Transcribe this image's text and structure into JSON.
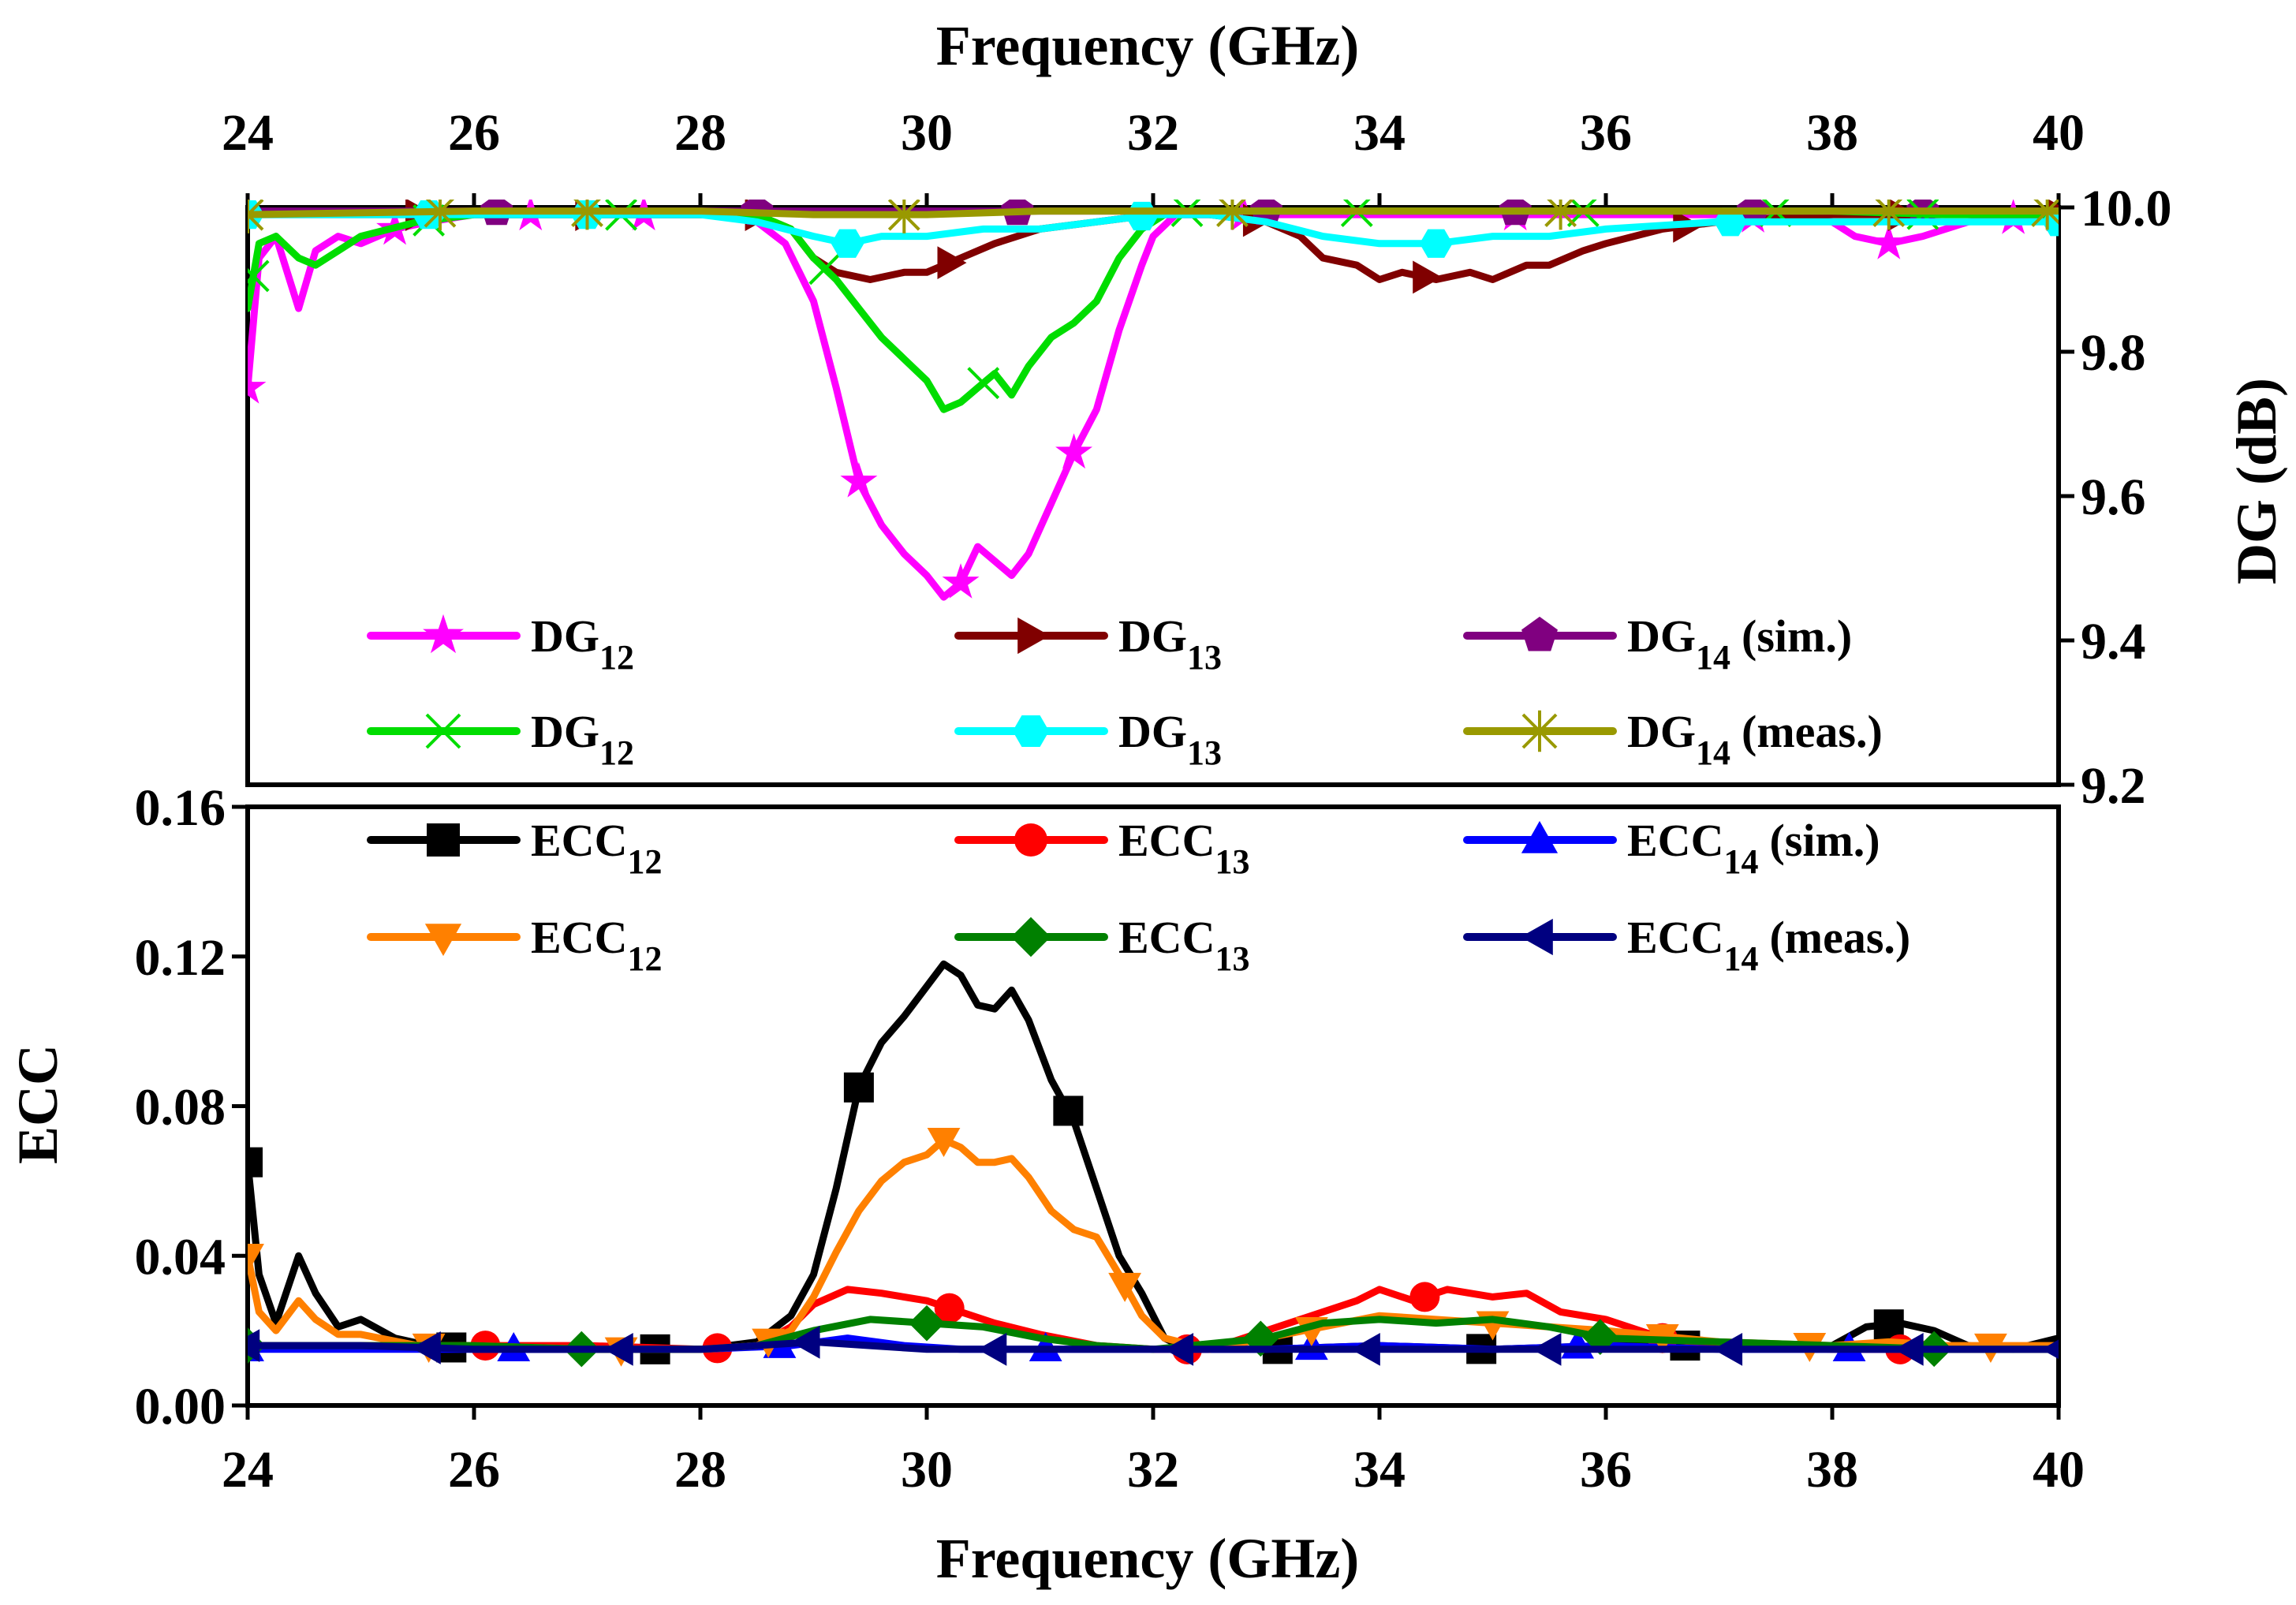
{
  "chart_data": [
    {
      "id": "dg",
      "type": "line",
      "xlabel": "Frequency (GHz)",
      "ylabel": "DG (dB)",
      "xlim": [
        24,
        40
      ],
      "ylim": [
        9.2,
        10.0
      ],
      "xticks": [
        "24",
        "26",
        "28",
        "30",
        "32",
        "34",
        "36",
        "38",
        "40"
      ],
      "yticks": [
        "9.2",
        "9.4",
        "9.6",
        "9.8",
        "10.0"
      ],
      "legend_placement": "bottom",
      "series": [
        {
          "name": "DG",
          "sub": "12",
          "suffix": "",
          "color": "#ff00ff",
          "marker": "star",
          "x": [
            24,
            24.1,
            24.25,
            24.45,
            24.6,
            24.8,
            25.0,
            25.3,
            25.6,
            26,
            26.5,
            27,
            27.5,
            28,
            28.3,
            28.5,
            28.75,
            29,
            29.2,
            29.4,
            29.6,
            29.8,
            30,
            30.15,
            30.3,
            30.45,
            30.6,
            30.75,
            30.9,
            31.1,
            31.3,
            31.5,
            31.7,
            31.9,
            32,
            32.2,
            32.5,
            33,
            34,
            35,
            36,
            37,
            38,
            38.2,
            38.5,
            38.8,
            39.2,
            40
          ],
          "y": [
            9.75,
            9.93,
            9.96,
            9.86,
            9.94,
            9.96,
            9.95,
            9.97,
            9.98,
            9.99,
            9.99,
            9.99,
            9.99,
            9.99,
            9.99,
            9.98,
            9.95,
            9.87,
            9.75,
            9.62,
            9.56,
            9.52,
            9.49,
            9.46,
            9.48,
            9.53,
            9.51,
            9.49,
            9.52,
            9.59,
            9.66,
            9.72,
            9.83,
            9.92,
            9.96,
            9.99,
            9.99,
            9.99,
            9.99,
            9.99,
            9.99,
            9.99,
            9.98,
            9.96,
            9.95,
            9.96,
            9.98,
            9.99
          ],
          "markers_at": [
            24,
            25.3,
            26.5,
            27.5,
            29.4,
            30.3,
            31.3,
            32.8,
            35.2,
            37.3,
            38.5,
            39.6
          ]
        },
        {
          "name": "DG",
          "sub": "13",
          "suffix": "",
          "color": "#800000",
          "marker": "triangle-right",
          "x": [
            24,
            24.5,
            25,
            26,
            27,
            28,
            28.5,
            28.8,
            29,
            29.2,
            29.5,
            29.8,
            30,
            30.3,
            30.6,
            31,
            31.5,
            32,
            32.5,
            33,
            33.3,
            33.5,
            33.8,
            34,
            34.2,
            34.5,
            34.8,
            35,
            35.3,
            35.5,
            35.8,
            36,
            36.5,
            37,
            38,
            39,
            40
          ],
          "y": [
            9.99,
            9.99,
            9.99,
            9.99,
            9.99,
            9.99,
            9.99,
            9.97,
            9.93,
            9.91,
            9.9,
            9.91,
            9.91,
            9.93,
            9.95,
            9.97,
            9.98,
            9.99,
            9.99,
            9.98,
            9.96,
            9.93,
            9.92,
            9.9,
            9.91,
            9.9,
            9.91,
            9.9,
            9.92,
            9.92,
            9.94,
            9.95,
            9.97,
            9.98,
            9.99,
            9.99,
            9.99
          ],
          "markers_at": [
            25.5,
            27,
            28.5,
            30.2,
            32.9,
            34.4,
            36.7,
            38.6,
            40
          ]
        },
        {
          "name": "DG",
          "sub": "14",
          "suffix": "(sim.)",
          "color": "#800080",
          "marker": "pentagon",
          "x": [
            24,
            26,
            28,
            30,
            32,
            34,
            36,
            38,
            40
          ],
          "y": [
            9.995,
            9.995,
            9.995,
            9.995,
            9.995,
            9.995,
            9.995,
            9.995,
            9.995
          ],
          "markers_at": [
            26.2,
            28.5,
            30.8,
            33.0,
            35.2,
            37.3,
            38.8
          ]
        },
        {
          "name": "DG",
          "sub": "12",
          "suffix": "",
          "color": "#00dd00",
          "marker": "x",
          "x": [
            24,
            24.1,
            24.25,
            24.45,
            24.6,
            24.8,
            25,
            25.5,
            26,
            27,
            28,
            28.5,
            28.8,
            29,
            29.2,
            29.4,
            29.6,
            29.8,
            30,
            30.15,
            30.3,
            30.45,
            30.6,
            30.75,
            30.9,
            31.1,
            31.3,
            31.5,
            31.7,
            31.9,
            32.1,
            32.3,
            33,
            34,
            35,
            36,
            37,
            38,
            39,
            40
          ],
          "y": [
            9.86,
            9.95,
            9.96,
            9.93,
            9.92,
            9.94,
            9.96,
            9.98,
            9.99,
            9.99,
            9.99,
            9.99,
            9.97,
            9.93,
            9.9,
            9.86,
            9.82,
            9.79,
            9.76,
            9.72,
            9.73,
            9.75,
            9.77,
            9.74,
            9.78,
            9.82,
            9.84,
            9.87,
            9.93,
            9.97,
            9.99,
            9.995,
            9.995,
            9.995,
            9.995,
            9.995,
            9.995,
            9.995,
            9.99,
            9.99
          ],
          "markers_at": [
            24.05,
            25.6,
            27.3,
            29.1,
            30.5,
            32.3,
            33.8,
            35.8,
            37.5,
            38.8
          ]
        },
        {
          "name": "DG",
          "sub": "13",
          "suffix": "",
          "color": "#00ffff",
          "marker": "hexagon",
          "x": [
            24,
            25,
            26,
            27,
            28,
            28.5,
            29,
            29.3,
            29.6,
            30,
            30.5,
            31,
            31.5,
            32,
            32.5,
            33,
            33.5,
            34,
            34.5,
            35,
            35.5,
            36,
            37,
            38,
            39,
            40
          ],
          "y": [
            9.99,
            9.99,
            9.99,
            9.99,
            9.99,
            9.98,
            9.96,
            9.95,
            9.96,
            9.96,
            9.97,
            9.97,
            9.98,
            9.99,
            9.99,
            9.98,
            9.96,
            9.95,
            9.95,
            9.96,
            9.96,
            9.97,
            9.98,
            9.98,
            9.98,
            9.98
          ],
          "markers_at": [
            24,
            25.6,
            27.0,
            29.3,
            31.9,
            34.5,
            37.1,
            40
          ]
        },
        {
          "name": "DG",
          "sub": "14",
          "suffix": "(meas.)",
          "color": "#999900",
          "marker": "asterisk",
          "x": [
            24,
            26,
            28,
            29,
            30,
            31,
            32,
            34,
            36,
            38,
            40
          ],
          "y": [
            9.99,
            9.995,
            9.995,
            9.99,
            9.99,
            9.995,
            9.995,
            9.995,
            9.995,
            9.995,
            9.995
          ],
          "markers_at": [
            24.0,
            25.7,
            27.0,
            29.8,
            32.7,
            35.6,
            38.5,
            39.9
          ]
        }
      ]
    },
    {
      "id": "ecc",
      "type": "line",
      "xlabel": "Frequency (GHz)",
      "ylabel": "ECC",
      "xlim": [
        24,
        40
      ],
      "ylim": [
        0,
        0.16
      ],
      "xticks": [
        "24",
        "26",
        "28",
        "30",
        "32",
        "34",
        "36",
        "38",
        "40"
      ],
      "yticks": [
        "0.00",
        "0.04",
        "0.08",
        "0.12",
        "0.16"
      ],
      "legend_placement": "top",
      "series": [
        {
          "name": "ECC",
          "sub": "12",
          "suffix": "",
          "color": "#000000",
          "marker": "square",
          "x": [
            24,
            24.1,
            24.25,
            24.45,
            24.6,
            24.8,
            25,
            25.3,
            25.6,
            26,
            27,
            28,
            28.5,
            28.8,
            29,
            29.2,
            29.4,
            29.6,
            29.8,
            30,
            30.15,
            30.3,
            30.45,
            30.6,
            30.75,
            30.9,
            31.1,
            31.3,
            31.5,
            31.7,
            31.9,
            32.1,
            32.3,
            33,
            34,
            35,
            36,
            37,
            38,
            38.3,
            38.6,
            38.9,
            39.2,
            39.6,
            40
          ],
          "y": [
            0.065,
            0.035,
            0.022,
            0.04,
            0.03,
            0.021,
            0.023,
            0.018,
            0.016,
            0.015,
            0.015,
            0.015,
            0.017,
            0.024,
            0.035,
            0.058,
            0.085,
            0.097,
            0.104,
            0.112,
            0.118,
            0.115,
            0.107,
            0.106,
            0.111,
            0.103,
            0.087,
            0.076,
            0.058,
            0.04,
            0.03,
            0.018,
            0.015,
            0.015,
            0.016,
            0.015,
            0.016,
            0.016,
            0.016,
            0.021,
            0.022,
            0.02,
            0.016,
            0.015,
            0.018
          ],
          "markers_at": [
            24,
            25.8,
            27.6,
            29.4,
            31.25,
            33.1,
            34.9,
            36.7,
            38.5
          ]
        },
        {
          "name": "ECC",
          "sub": "13",
          "suffix": "",
          "color": "#ff0000",
          "marker": "circle",
          "x": [
            24,
            25,
            26,
            27,
            28,
            28.5,
            28.8,
            29,
            29.3,
            29.6,
            30,
            30.3,
            30.6,
            31,
            31.5,
            32,
            32.5,
            33,
            33.5,
            33.8,
            34,
            34.3,
            34.6,
            35,
            35.3,
            35.6,
            36,
            36.5,
            37,
            38,
            39,
            40
          ],
          "y": [
            0.016,
            0.016,
            0.016,
            0.016,
            0.015,
            0.016,
            0.021,
            0.027,
            0.031,
            0.03,
            0.028,
            0.025,
            0.022,
            0.019,
            0.016,
            0.015,
            0.015,
            0.02,
            0.025,
            0.028,
            0.031,
            0.028,
            0.031,
            0.029,
            0.03,
            0.025,
            0.023,
            0.018,
            0.016,
            0.015,
            0.015,
            0.015
          ],
          "markers_at": [
            26.1,
            28.15,
            30.2,
            32.3,
            34.4,
            36.5,
            38.6
          ]
        },
        {
          "name": "ECC",
          "sub": "14",
          "suffix": "(sim.)",
          "color": "#0000ff",
          "marker": "triangle-up",
          "x": [
            24,
            25,
            26,
            27,
            28,
            28.8,
            29.3,
            29.8,
            30.3,
            31,
            32,
            33,
            34,
            35,
            36,
            37,
            38,
            39,
            40
          ],
          "y": [
            0.015,
            0.015,
            0.015,
            0.015,
            0.015,
            0.016,
            0.018,
            0.016,
            0.015,
            0.015,
            0.015,
            0.015,
            0.016,
            0.015,
            0.016,
            0.015,
            0.015,
            0.015,
            0.015
          ],
          "markers_at": [
            24,
            26.35,
            28.7,
            31.05,
            33.4,
            35.75,
            38.15
          ]
        },
        {
          "name": "ECC",
          "sub": "12",
          "suffix": "",
          "color": "#ff8000",
          "marker": "triangle-down",
          "x": [
            24,
            24.1,
            24.25,
            24.45,
            24.6,
            24.8,
            25,
            25.5,
            26,
            27,
            28,
            28.5,
            28.8,
            29,
            29.2,
            29.4,
            29.6,
            29.8,
            30,
            30.15,
            30.3,
            30.45,
            30.6,
            30.75,
            30.9,
            31.1,
            31.3,
            31.5,
            31.7,
            31.9,
            32.1,
            32.5,
            33,
            34,
            35,
            36,
            37,
            38,
            38.5,
            39,
            39.5,
            40
          ],
          "y": [
            0.04,
            0.025,
            0.02,
            0.028,
            0.023,
            0.019,
            0.019,
            0.016,
            0.016,
            0.015,
            0.015,
            0.016,
            0.02,
            0.029,
            0.041,
            0.052,
            0.06,
            0.065,
            0.067,
            0.071,
            0.069,
            0.065,
            0.065,
            0.066,
            0.061,
            0.052,
            0.047,
            0.045,
            0.035,
            0.024,
            0.018,
            0.015,
            0.018,
            0.024,
            0.022,
            0.02,
            0.017,
            0.016,
            0.017,
            0.016,
            0.016,
            0.016
          ],
          "markers_at": [
            24,
            25.6,
            27.3,
            28.6,
            30.15,
            31.75,
            33.4,
            35.0,
            36.5,
            37.8,
            39.4
          ]
        },
        {
          "name": "ECC",
          "sub": "13",
          "suffix": "",
          "color": "#008000",
          "marker": "diamond",
          "x": [
            24,
            25,
            26,
            27,
            28,
            28.5,
            29,
            29.5,
            30,
            30.5,
            31,
            31.5,
            32,
            33,
            33.5,
            34,
            34.5,
            35,
            35.5,
            36,
            37,
            38,
            39,
            40
          ],
          "y": [
            0.016,
            0.016,
            0.016,
            0.015,
            0.015,
            0.016,
            0.02,
            0.023,
            0.022,
            0.021,
            0.018,
            0.016,
            0.015,
            0.018,
            0.022,
            0.023,
            0.022,
            0.023,
            0.021,
            0.018,
            0.017,
            0.016,
            0.015,
            0.015
          ],
          "markers_at": [
            24,
            26.95,
            30.0,
            32.95,
            35.95,
            38.9
          ]
        },
        {
          "name": "ECC",
          "sub": "14",
          "suffix": "(meas.)",
          "color": "#000080",
          "marker": "triangle-left",
          "x": [
            24,
            25,
            26,
            27,
            28,
            29,
            29.5,
            30,
            30.5,
            31,
            32,
            33,
            34,
            35,
            36,
            37,
            38,
            39,
            40
          ],
          "y": [
            0.016,
            0.016,
            0.015,
            0.015,
            0.015,
            0.017,
            0.016,
            0.015,
            0.015,
            0.015,
            0.015,
            0.015,
            0.015,
            0.015,
            0.015,
            0.015,
            0.015,
            0.015,
            0.015
          ],
          "markers_at": [
            24,
            25.6,
            27.3,
            28.95,
            30.6,
            32.25,
            33.9,
            35.5,
            37.1,
            38.7,
            40
          ]
        }
      ]
    }
  ]
}
